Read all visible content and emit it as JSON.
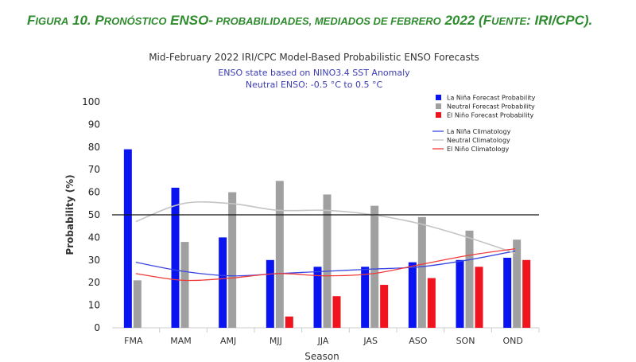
{
  "caption": {
    "prefix": "F",
    "word1_rest": "igura",
    "num": " 10. P",
    "word2_rest": "ronóstico",
    "enso": " ENSO-",
    "middle": " probabilidades, mediados de febrero",
    "year": " 2022 (F",
    "fuente_rest": "uente",
    "tail": ": IRI/CPC)."
  },
  "chart_data": {
    "type": "bar",
    "title": "Mid-February 2022 IRI/CPC Model-Based Probabilistic ENSO Forecasts",
    "subtitle_1": "ENSO state based on NINO3.4 SST Anomaly",
    "subtitle_2": "Neutral ENSO: -0.5 °C to 0.5 °C",
    "xlabel": "Season",
    "ylabel": "Probability (%)",
    "ylim": [
      0,
      100
    ],
    "yticks": [
      "0",
      "10",
      "20",
      "30",
      "40",
      "50",
      "60",
      "70",
      "80",
      "90",
      "100"
    ],
    "categories": [
      "FMA",
      "MAM",
      "AMJ",
      "MJJ",
      "JJA",
      "JAS",
      "ASO",
      "SON",
      "OND"
    ],
    "reference_line": 50,
    "legend_position": "top-right",
    "series": [
      {
        "name": "La Niña Forecast Probability",
        "color": "#0a14f0",
        "values": [
          79,
          62,
          40,
          30,
          27,
          27,
          29,
          30,
          31
        ]
      },
      {
        "name": "Neutral Forecast Probability",
        "color": "#a0a0a0",
        "values": [
          21,
          38,
          60,
          65,
          59,
          54,
          49,
          43,
          39
        ]
      },
      {
        "name": "El Niño Forecast Probability",
        "color": "#f0141e",
        "values": [
          0,
          0,
          0,
          5,
          14,
          19,
          22,
          27,
          30
        ]
      }
    ],
    "climatology": [
      {
        "name": "La Niña Climatology",
        "color": "#3a47e0",
        "values": [
          29,
          25,
          23,
          24,
          25,
          26,
          27,
          30,
          34
        ]
      },
      {
        "name": "Neutral Climatology",
        "color": "#c4c4c4",
        "values": [
          47,
          55,
          55,
          52,
          52,
          50,
          46,
          40,
          33
        ]
      },
      {
        "name": "El Niño Climatology",
        "color": "#f03a3a",
        "values": [
          24,
          21,
          22,
          24,
          23,
          24,
          28,
          32,
          35
        ]
      }
    ]
  }
}
